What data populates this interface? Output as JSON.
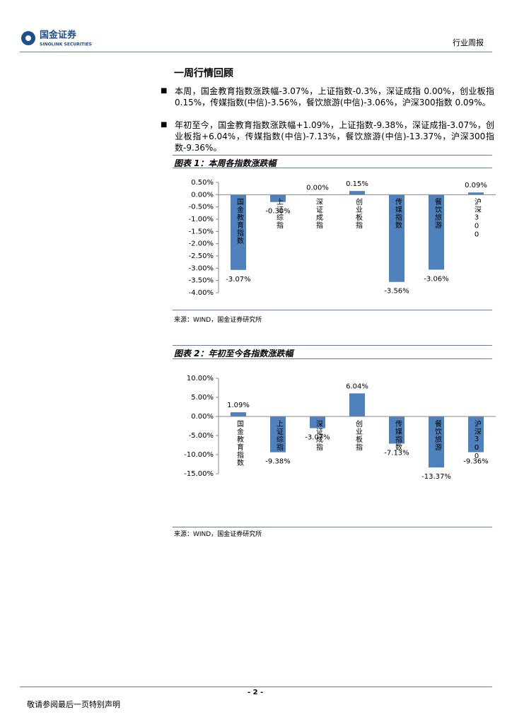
{
  "header": {
    "brand": "国金证券",
    "brand_en": "SINOLINK SECURITIES",
    "report_type": "行业周报"
  },
  "section_title": "一周行情回顾",
  "bullets": [
    "本周，国金教育指数涨跌幅-3.07%，上证指数-0.3%，深证成指 0.00%，创业板指 0.15%，传媒指数(中信)-3.56%，餐饮旅游(中信)-3.06%，沪深300指数 0.09%。",
    "年初至今，国金教育指数涨跌幅+1.09%，上证指数-9.38%，深证成指-3.07%，创业板指+6.04%，传媒指数(中信)-7.13%，餐饮旅游(中信)-13.37%，沪深300指数-9.36%。"
  ],
  "chart_data": [
    {
      "type": "bar",
      "title": "图表 1：本周各指数涨跌幅",
      "source": "来源：WIND，国金证券研究所",
      "color": "#4f81bd",
      "categories": [
        "国金教育指数",
        "上证综指",
        "深证成指",
        "创业板指",
        "传媒指数",
        "餐饮旅游",
        "沪深300"
      ],
      "values": [
        -3.07,
        -0.3,
        0.0,
        0.15,
        -3.56,
        -3.06,
        0.09
      ],
      "value_labels": [
        "-3.07%",
        "-0.30%",
        "0.00%",
        "0.15%",
        "-3.56%",
        "-3.06%",
        "0.09%"
      ],
      "ylim": [
        -4.0,
        0.5
      ],
      "yticks": [
        {
          "value": 0.5,
          "label": "0.50%"
        },
        {
          "value": 0,
          "label": "0.00%"
        },
        {
          "value": -0.5,
          "label": "-0.50%"
        },
        {
          "value": -1.0,
          "label": "-1.00%"
        },
        {
          "value": -1.5,
          "label": "-1.50%"
        },
        {
          "value": -2.0,
          "label": "-2.00%"
        },
        {
          "value": -2.5,
          "label": "-2.50%"
        },
        {
          "value": -3.0,
          "label": "-3.00%"
        },
        {
          "value": -3.5,
          "label": "-3.50%"
        },
        {
          "value": -4.0,
          "label": "-4.00%"
        }
      ]
    },
    {
      "type": "bar",
      "title": "图表 2：年初至今各指数涨跌幅",
      "source": "来源：WIND，国金证券研究所",
      "color": "#4f81bd",
      "categories": [
        "国金教育指数",
        "上证综指",
        "深证成指",
        "创业板指",
        "传媒指数",
        "餐饮旅游",
        "沪深300"
      ],
      "values": [
        1.09,
        -9.38,
        -3.07,
        6.04,
        -7.13,
        -13.37,
        -9.36
      ],
      "value_labels": [
        "1.09%",
        "-9.38%",
        "-3.07%",
        "6.04%",
        "-7.13%",
        "-13.37%",
        "-9.36%"
      ],
      "ylim": [
        -15,
        10
      ],
      "yticks": [
        {
          "value": 10,
          "label": "10.00%"
        },
        {
          "value": 5,
          "label": "5.00%"
        },
        {
          "value": 0,
          "label": "0.00%"
        },
        {
          "value": -5,
          "label": "-5.00%"
        },
        {
          "value": -10,
          "label": "-10.00%"
        },
        {
          "value": -15,
          "label": "-15.00%"
        }
      ]
    }
  ],
  "footer": {
    "page": "- 2 -",
    "disclaimer": "敬请参阅最后一页特别声明"
  }
}
